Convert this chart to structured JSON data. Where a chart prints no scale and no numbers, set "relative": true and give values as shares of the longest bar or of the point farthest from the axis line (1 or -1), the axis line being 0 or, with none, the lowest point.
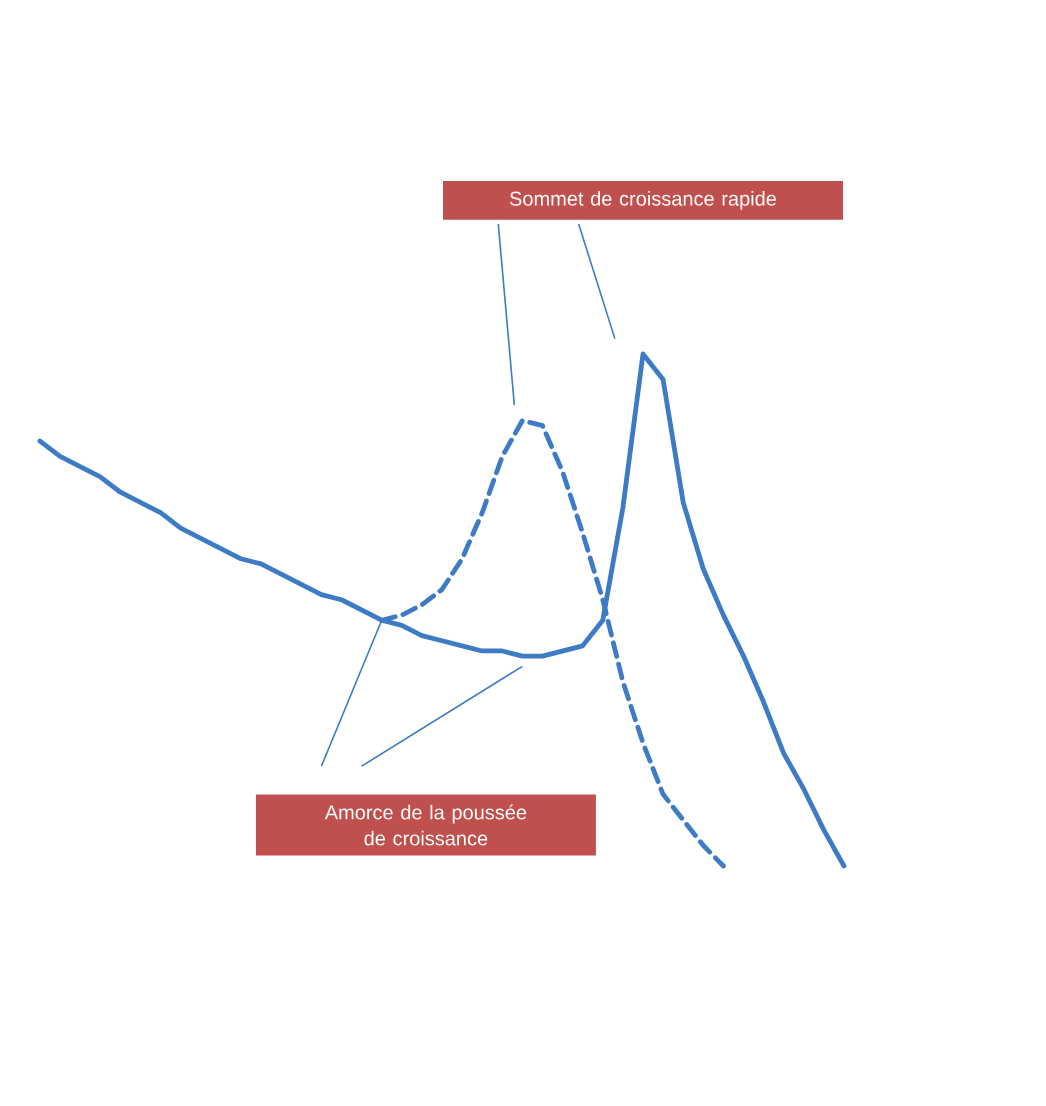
{
  "chart_data": {
    "type": "line",
    "relative": true,
    "annotations": [
      "Sommet de croissance rapide",
      "Amorce de la poussée de croissance"
    ],
    "categories": [
      null,
      null,
      null,
      null,
      null,
      null,
      null,
      null,
      null,
      null,
      null,
      null,
      null,
      null,
      null,
      null,
      null,
      null,
      null,
      null,
      null,
      null,
      null,
      null,
      null,
      null,
      null,
      null,
      null,
      null,
      null,
      null,
      null,
      null,
      null,
      null,
      null,
      null,
      null,
      null,
      null
    ],
    "series": [
      {
        "color": "#3d7cc4",
        "line_style": "solid",
        "values": [
          0.83,
          0.8,
          0.78,
          0.76,
          0.73,
          0.71,
          0.69,
          0.66,
          0.64,
          0.62,
          0.6,
          0.59,
          0.57,
          0.55,
          0.53,
          0.52,
          0.5,
          0.48,
          0.47,
          0.45,
          0.44,
          0.43,
          0.42,
          0.42,
          0.41,
          0.41,
          0.42,
          0.43,
          0.48,
          0.7,
          1,
          0.95,
          0.71,
          0.58,
          0.49,
          0.41,
          0.32,
          0.22,
          0.15,
          0.07,
          0
        ]
      },
      {
        "color": "#3d7cc4",
        "line_style": "dashed",
        "values": [
          null,
          null,
          null,
          null,
          null,
          null,
          null,
          null,
          null,
          null,
          null,
          null,
          null,
          null,
          null,
          null,
          null,
          0.48,
          0.49,
          0.51,
          0.54,
          0.6,
          0.69,
          0.8,
          0.87,
          0.86,
          0.77,
          0.65,
          0.52,
          0.36,
          0.24,
          0.14,
          0.09,
          0.04,
          0.0,
          null,
          null,
          null,
          null,
          null,
          null
        ]
      }
    ]
  }
}
